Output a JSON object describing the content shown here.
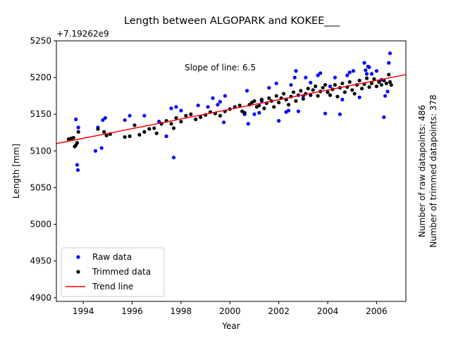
{
  "chart_data": {
    "type": "scatter",
    "title": "Length between ALGOPARK and KOKEE___",
    "xlabel": "Year",
    "ylabel": "Length [mm]",
    "offset_label": "+7.19262e9",
    "annotation": "Slope of line: 6.5",
    "side_text": [
      "Number of raw datapoints: 486",
      "Number of trimmed datapoints: 378"
    ],
    "xlim": [
      1992.9,
      2007.2
    ],
    "ylim": [
      4895,
      5250
    ],
    "x_ticks": [
      1994,
      1996,
      1998,
      2000,
      2002,
      2004,
      2006
    ],
    "x_tick_labels": [
      "1994",
      "1996",
      "1998",
      "2000",
      "2002",
      "2004",
      "2006"
    ],
    "y_ticks": [
      4900,
      4950,
      5000,
      5050,
      5100,
      5150,
      5200,
      5250
    ],
    "y_tick_labels": [
      "4900",
      "4950",
      "5000",
      "5050",
      "5100",
      "5150",
      "5200",
      "5250"
    ],
    "legend": {
      "position": "lower-left",
      "entries": [
        "Raw data",
        "Trimmed data",
        "Trend line"
      ]
    },
    "colors": {
      "raw": "#0000ff",
      "trimmed": "#000000",
      "trend": "#ff0000"
    },
    "trend_line": {
      "x": [
        1992.9,
        2007.2
      ],
      "y": [
        5110,
        5204
      ]
    },
    "series": [
      {
        "name": "Raw data",
        "points": [
          [
            1993.7,
            5143
          ],
          [
            1993.75,
            5081
          ],
          [
            1993.78,
            5074
          ],
          [
            1993.8,
            5132
          ],
          [
            1994.5,
            5100
          ],
          [
            1994.6,
            5132
          ],
          [
            1994.75,
            5104
          ],
          [
            1994.8,
            5142
          ],
          [
            1994.9,
            5145
          ],
          [
            1995.7,
            5142
          ],
          [
            1995.9,
            5148
          ],
          [
            1996.5,
            5148
          ],
          [
            1997.1,
            5140
          ],
          [
            1997.4,
            5120
          ],
          [
            1997.6,
            5158
          ],
          [
            1997.7,
            5091
          ],
          [
            1997.8,
            5160
          ],
          [
            1998.0,
            5155
          ],
          [
            1998.7,
            5162
          ],
          [
            1999.1,
            5160
          ],
          [
            1999.3,
            5172
          ],
          [
            1999.5,
            5163
          ],
          [
            1999.6,
            5167
          ],
          [
            1999.75,
            5139
          ],
          [
            1999.8,
            5175
          ],
          [
            2000.6,
            5150
          ],
          [
            2000.7,
            5182
          ],
          [
            2000.75,
            5137
          ],
          [
            2001.0,
            5150
          ],
          [
            2001.2,
            5152
          ],
          [
            2001.3,
            5168
          ],
          [
            2001.6,
            5186
          ],
          [
            2001.9,
            5192
          ],
          [
            2002.0,
            5141
          ],
          [
            2002.3,
            5153
          ],
          [
            2002.4,
            5155
          ],
          [
            2002.5,
            5190
          ],
          [
            2002.65,
            5200
          ],
          [
            2002.7,
            5209
          ],
          [
            2002.8,
            5154
          ],
          [
            2003.0,
            5175
          ],
          [
            2003.1,
            5200
          ],
          [
            2003.3,
            5193
          ],
          [
            2003.6,
            5203
          ],
          [
            2003.7,
            5206
          ],
          [
            2003.9,
            5151
          ],
          [
            2004.1,
            5188
          ],
          [
            2004.3,
            5200
          ],
          [
            2004.5,
            5150
          ],
          [
            2004.6,
            5170
          ],
          [
            2004.8,
            5203
          ],
          [
            2004.9,
            5207
          ],
          [
            2005.05,
            5209
          ],
          [
            2005.3,
            5173
          ],
          [
            2005.5,
            5220
          ],
          [
            2005.55,
            5210
          ],
          [
            2005.6,
            5205
          ],
          [
            2005.65,
            5215
          ],
          [
            2005.7,
            5214
          ],
          [
            2005.8,
            5205
          ],
          [
            2006.0,
            5209
          ],
          [
            2006.2,
            5197
          ],
          [
            2006.3,
            5146
          ],
          [
            2006.35,
            5175
          ],
          [
            2006.45,
            5181
          ],
          [
            2006.5,
            5220
          ],
          [
            2006.55,
            5233
          ]
        ]
      },
      {
        "name": "Trimmed data",
        "points": [
          [
            1993.4,
            5116
          ],
          [
            1993.5,
            5117
          ],
          [
            1993.6,
            5118
          ],
          [
            1993.65,
            5106
          ],
          [
            1993.7,
            5108
          ],
          [
            1993.75,
            5111
          ],
          [
            1993.8,
            5126
          ],
          [
            1994.6,
            5130
          ],
          [
            1994.85,
            5126
          ],
          [
            1994.95,
            5121
          ],
          [
            1995.1,
            5123
          ],
          [
            1995.7,
            5119
          ],
          [
            1995.9,
            5120
          ],
          [
            1996.1,
            5135
          ],
          [
            1996.3,
            5122
          ],
          [
            1996.5,
            5126
          ],
          [
            1996.7,
            5130
          ],
          [
            1996.9,
            5131
          ],
          [
            1997.0,
            5124
          ],
          [
            1997.2,
            5137
          ],
          [
            1997.4,
            5141
          ],
          [
            1997.6,
            5137
          ],
          [
            1997.7,
            5131
          ],
          [
            1997.8,
            5145
          ],
          [
            1998.0,
            5140
          ],
          [
            1998.2,
            5148
          ],
          [
            1998.4,
            5150
          ],
          [
            1998.6,
            5143
          ],
          [
            1998.8,
            5146
          ],
          [
            1999.0,
            5149
          ],
          [
            1999.2,
            5153
          ],
          [
            1999.4,
            5151
          ],
          [
            1999.6,
            5148
          ],
          [
            1999.8,
            5154
          ],
          [
            2000.0,
            5157
          ],
          [
            2000.2,
            5160
          ],
          [
            2000.4,
            5162
          ],
          [
            2000.5,
            5154
          ],
          [
            2000.6,
            5152
          ],
          [
            2000.8,
            5163
          ],
          [
            2000.9,
            5166
          ],
          [
            2001.0,
            5168
          ],
          [
            2001.1,
            5160
          ],
          [
            2001.2,
            5162
          ],
          [
            2001.3,
            5170
          ],
          [
            2001.4,
            5158
          ],
          [
            2001.5,
            5165
          ],
          [
            2001.6,
            5172
          ],
          [
            2001.7,
            5168
          ],
          [
            2001.8,
            5160
          ],
          [
            2001.9,
            5175
          ],
          [
            2002.0,
            5166
          ],
          [
            2002.1,
            5172
          ],
          [
            2002.2,
            5178
          ],
          [
            2002.3,
            5170
          ],
          [
            2002.4,
            5163
          ],
          [
            2002.5,
            5174
          ],
          [
            2002.6,
            5180
          ],
          [
            2002.7,
            5168
          ],
          [
            2002.8,
            5176
          ],
          [
            2002.9,
            5182
          ],
          [
            2003.0,
            5171
          ],
          [
            2003.1,
            5178
          ],
          [
            2003.2,
            5185
          ],
          [
            2003.3,
            5176
          ],
          [
            2003.4,
            5183
          ],
          [
            2003.5,
            5188
          ],
          [
            2003.6,
            5175
          ],
          [
            2003.7,
            5181
          ],
          [
            2003.8,
            5186
          ],
          [
            2003.9,
            5190
          ],
          [
            2004.0,
            5180
          ],
          [
            2004.1,
            5176
          ],
          [
            2004.2,
            5184
          ],
          [
            2004.3,
            5190
          ],
          [
            2004.4,
            5174
          ],
          [
            2004.5,
            5186
          ],
          [
            2004.6,
            5192
          ],
          [
            2004.7,
            5180
          ],
          [
            2004.8,
            5187
          ],
          [
            2004.9,
            5194
          ],
          [
            2005.0,
            5183
          ],
          [
            2005.1,
            5178
          ],
          [
            2005.2,
            5190
          ],
          [
            2005.3,
            5196
          ],
          [
            2005.4,
            5185
          ],
          [
            2005.5,
            5191
          ],
          [
            2005.6,
            5199
          ],
          [
            2005.7,
            5187
          ],
          [
            2005.8,
            5192
          ],
          [
            2005.9,
            5198
          ],
          [
            2006.0,
            5188
          ],
          [
            2006.1,
            5194
          ],
          [
            2006.2,
            5190
          ],
          [
            2006.3,
            5196
          ],
          [
            2006.4,
            5192
          ],
          [
            2006.5,
            5204
          ],
          [
            2006.55,
            5194
          ],
          [
            2006.6,
            5190
          ]
        ]
      }
    ]
  }
}
